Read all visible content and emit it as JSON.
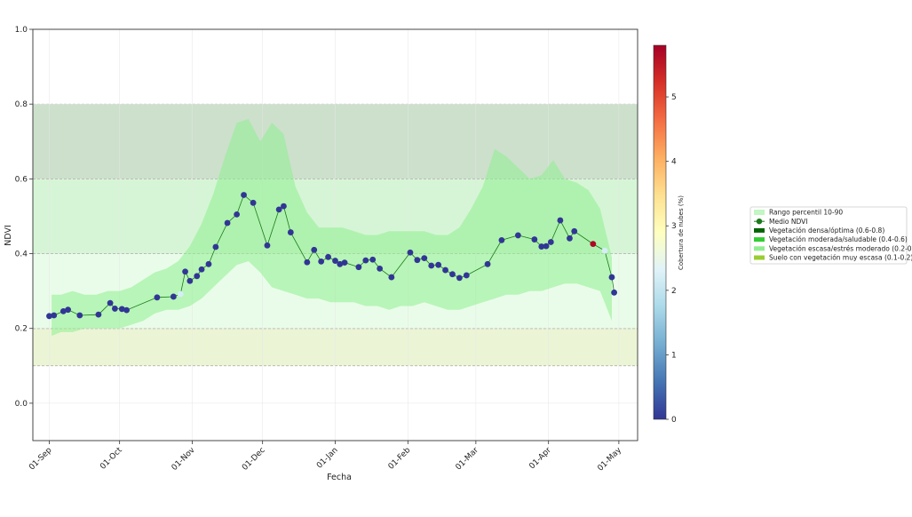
{
  "chart_data": {
    "type": "scatter",
    "xlabel": "Fecha",
    "ylabel": "NDVI",
    "xlim": [
      "2023-08-25",
      "2024-05-09"
    ],
    "ylim": [
      -0.1,
      1.0
    ],
    "y_ticks": [
      "0.0",
      "0.2",
      "0.4",
      "0.6",
      "0.8",
      "1.0"
    ],
    "x_ticks": [
      {
        "date": "2023-09-01",
        "label": "01-Sep"
      },
      {
        "date": "2023-10-01",
        "label": "01-Oct"
      },
      {
        "date": "2023-11-01",
        "label": "01-Nov"
      },
      {
        "date": "2023-12-01",
        "label": "01-Dec"
      },
      {
        "date": "2024-01-01",
        "label": "01-Jan"
      },
      {
        "date": "2024-02-01",
        "label": "01-Feb"
      },
      {
        "date": "2024-03-01",
        "label": "01-Mar"
      },
      {
        "date": "2024-04-01",
        "label": "01-Apr"
      },
      {
        "date": "2024-05-01",
        "label": "01-May"
      }
    ],
    "grid": true,
    "bands": [
      {
        "name": "Vegetación densa/óptima (0.6-0.8)",
        "range": [
          0.6,
          0.8
        ],
        "color": "#006400"
      },
      {
        "name": "Vegetación moderada/saludable (0.4-0.6)",
        "range": [
          0.4,
          0.6
        ],
        "color": "#32cd32"
      },
      {
        "name": "Vegetación escasa/estrés moderado (0.2-0.4)",
        "range": [
          0.2,
          0.4
        ],
        "color": "#90ee90"
      },
      {
        "name": "Suelo con vegetación muy escasa (0.1-0.2)",
        "range": [
          0.1,
          0.2
        ],
        "color": "#9acd32"
      }
    ],
    "percentile_band": {
      "name": "Rango percentil 10-90",
      "color": "#90ee90",
      "x": [
        "2023-09-02",
        "2023-09-06",
        "2023-09-11",
        "2023-09-16",
        "2023-09-21",
        "2023-09-26",
        "2023-10-01",
        "2023-10-06",
        "2023-10-11",
        "2023-10-16",
        "2023-10-21",
        "2023-10-26",
        "2023-10-31",
        "2023-11-05",
        "2023-11-10",
        "2023-11-15",
        "2023-11-20",
        "2023-11-25",
        "2023-11-30",
        "2023-12-05",
        "2023-12-10",
        "2023-12-15",
        "2023-12-20",
        "2023-12-25",
        "2023-12-30",
        "2024-01-04",
        "2024-01-09",
        "2024-01-14",
        "2024-01-19",
        "2024-01-24",
        "2024-01-29",
        "2024-02-03",
        "2024-02-08",
        "2024-02-13",
        "2024-02-18",
        "2024-02-23",
        "2024-02-28",
        "2024-03-04",
        "2024-03-09",
        "2024-03-14",
        "2024-03-19",
        "2024-03-24",
        "2024-03-29",
        "2024-04-03",
        "2024-04-08",
        "2024-04-13",
        "2024-04-18",
        "2024-04-23",
        "2024-04-28"
      ],
      "low": [
        0.18,
        0.19,
        0.19,
        0.2,
        0.2,
        0.2,
        0.2,
        0.21,
        0.22,
        0.24,
        0.25,
        0.25,
        0.26,
        0.28,
        0.31,
        0.34,
        0.37,
        0.38,
        0.35,
        0.31,
        0.3,
        0.29,
        0.28,
        0.28,
        0.27,
        0.27,
        0.27,
        0.26,
        0.26,
        0.25,
        0.26,
        0.26,
        0.27,
        0.26,
        0.25,
        0.25,
        0.26,
        0.27,
        0.28,
        0.29,
        0.29,
        0.3,
        0.3,
        0.31,
        0.32,
        0.32,
        0.31,
        0.3,
        0.22
      ],
      "high": [
        0.29,
        0.29,
        0.3,
        0.29,
        0.29,
        0.3,
        0.3,
        0.31,
        0.33,
        0.35,
        0.36,
        0.38,
        0.42,
        0.48,
        0.56,
        0.66,
        0.75,
        0.76,
        0.7,
        0.75,
        0.72,
        0.58,
        0.51,
        0.47,
        0.47,
        0.47,
        0.46,
        0.45,
        0.45,
        0.46,
        0.46,
        0.46,
        0.46,
        0.45,
        0.45,
        0.47,
        0.52,
        0.58,
        0.68,
        0.66,
        0.63,
        0.6,
        0.61,
        0.65,
        0.6,
        0.59,
        0.57,
        0.52,
        0.39
      ]
    },
    "series": [
      {
        "name": "Medio NDVI",
        "color": "#1a7a1a",
        "x": [
          "2023-09-01",
          "2023-09-03",
          "2023-09-07",
          "2023-09-09",
          "2023-09-14",
          "2023-09-22",
          "2023-09-27",
          "2023-09-29",
          "2023-10-02",
          "2023-10-04",
          "2023-10-17",
          "2023-10-24",
          "2023-10-27",
          "2023-10-29",
          "2023-10-31",
          "2023-11-03",
          "2023-11-05",
          "2023-11-08",
          "2023-11-11",
          "2023-11-16",
          "2023-11-20",
          "2023-11-23",
          "2023-11-27",
          "2023-12-03",
          "2023-12-08",
          "2023-12-10",
          "2023-12-13",
          "2023-12-20",
          "2023-12-23",
          "2023-12-26",
          "2023-12-29",
          "2024-01-01",
          "2024-01-03",
          "2024-01-05",
          "2024-01-11",
          "2024-01-14",
          "2024-01-17",
          "2024-01-20",
          "2024-01-25",
          "2024-02-02",
          "2024-02-05",
          "2024-02-08",
          "2024-02-11",
          "2024-02-14",
          "2024-02-17",
          "2024-02-20",
          "2024-02-23",
          "2024-02-26",
          "2024-03-06",
          "2024-03-12",
          "2024-03-19",
          "2024-03-26",
          "2024-03-29",
          "2024-03-31",
          "2024-04-02",
          "2024-04-06",
          "2024-04-10",
          "2024-04-12",
          "2024-04-20",
          "2024-04-25",
          "2024-04-28",
          "2024-04-29"
        ],
        "y": [
          0.233,
          0.235,
          0.246,
          0.25,
          0.235,
          0.237,
          0.268,
          0.253,
          0.252,
          0.249,
          0.283,
          0.285,
          0.292,
          0.352,
          0.327,
          0.34,
          0.358,
          0.372,
          0.418,
          0.482,
          0.505,
          0.557,
          0.536,
          0.422,
          0.518,
          0.527,
          0.457,
          0.377,
          0.41,
          0.379,
          0.391,
          0.381,
          0.372,
          0.376,
          0.364,
          0.382,
          0.384,
          0.36,
          0.337,
          0.403,
          0.383,
          0.388,
          0.368,
          0.37,
          0.356,
          0.345,
          0.335,
          0.342,
          0.372,
          0.436,
          0.449,
          0.438,
          0.419,
          0.42,
          0.431,
          0.489,
          0.441,
          0.46,
          0.426,
          0.408,
          0.337,
          0.296
        ],
        "cloud_cover": [
          0,
          0,
          0,
          0,
          0,
          0,
          0,
          0,
          0,
          0,
          0,
          0,
          2.2,
          0,
          0,
          0,
          0,
          0,
          0,
          0,
          0,
          0,
          0,
          0,
          0,
          0,
          0,
          0,
          0,
          0,
          0,
          0,
          0,
          0,
          0,
          0,
          0,
          0,
          0,
          0,
          0,
          0,
          0,
          0,
          0,
          0,
          0,
          0,
          0,
          0,
          0,
          0,
          0,
          0,
          0,
          0,
          0,
          0,
          5.7,
          2.2,
          0,
          0
        ]
      }
    ],
    "colorbar": {
      "label": "Cobertura de nubes (%)",
      "range": [
        0,
        5.8
      ],
      "ticks": [
        "0",
        "1",
        "2",
        "3",
        "4",
        "5"
      ],
      "colormap": "RdYlBu_r"
    },
    "legend": {
      "placement": "right",
      "entries": [
        "Rango percentil 10-90",
        "Medio NDVI",
        "Vegetación densa/óptima (0.6-0.8)",
        "Vegetación moderada/saludable (0.4-0.6)",
        "Vegetación escasa/estrés moderado (0.2-0.4)",
        "Suelo con vegetación muy escasa (0.1-0.2)"
      ]
    }
  }
}
